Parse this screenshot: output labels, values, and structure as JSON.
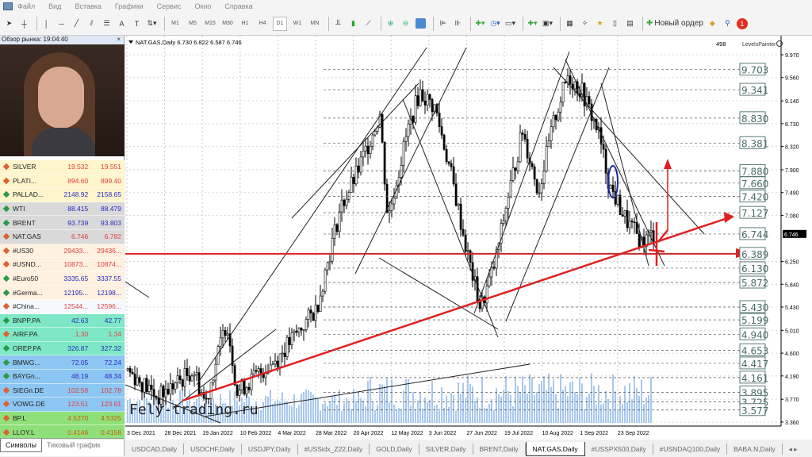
{
  "menu": [
    "Файл",
    "Вид",
    "Вставка",
    "Графики",
    "Сервис",
    "Окно",
    "Справка"
  ],
  "toolbar": {
    "timeframes": [
      "M1",
      "M5",
      "M15",
      "M30",
      "H1",
      "H4",
      "D1",
      "W1",
      "MN"
    ],
    "active_timeframe": "D1",
    "new_order": "Новый ордер",
    "notifications": "1"
  },
  "market_watch": {
    "title": "Обзор рынка: 19:04:40",
    "close": "×",
    "rows": [
      {
        "symbol": "SILVER",
        "bid": "19.532",
        "ask": "19.551",
        "dir": "down",
        "bg": "#fff5cc"
      },
      {
        "symbol": "PLATI...",
        "bid": "894.60",
        "ask": "899.40",
        "dir": "down",
        "bg": "#fff5cc"
      },
      {
        "symbol": "PALLAD...",
        "bid": "2148.92",
        "ask": "2158.65",
        "dir": "up",
        "bg": "#fff5cc"
      },
      {
        "symbol": "WTI",
        "bid": "88.415",
        "ask": "88.479",
        "dir": "up",
        "bg": "#d9d9d9"
      },
      {
        "symbol": "BRENT",
        "bid": "93.739",
        "ask": "93.803",
        "dir": "up",
        "bg": "#d9d9d9"
      },
      {
        "symbol": "NAT.GAS",
        "bid": "6.746",
        "ask": "6.782",
        "dir": "down",
        "bg": "#d9d9d9"
      },
      {
        "symbol": "#US30",
        "bid": "29433...",
        "ask": "29436...",
        "dir": "down",
        "bg": "#fff0e0"
      },
      {
        "symbol": "#USND...",
        "bid": "10873...",
        "ask": "10874...",
        "dir": "down",
        "bg": "#fff0e0"
      },
      {
        "symbol": "#Euro50",
        "bid": "3335.65",
        "ask": "3337.55",
        "dir": "up",
        "bg": "#fff0e0"
      },
      {
        "symbol": "#Germa...",
        "bid": "12195...",
        "ask": "12198...",
        "dir": "up",
        "bg": "#fff0e0"
      },
      {
        "symbol": "#China...",
        "bid": "12544...",
        "ask": "12596...",
        "dir": "down",
        "bg": "#f6f8ff"
      },
      {
        "symbol": "BNPP.PA",
        "bid": "42.63",
        "ask": "42.77",
        "dir": "up",
        "bg": "#7ee8c6"
      },
      {
        "symbol": "AIRF.PA",
        "bid": "1.30",
        "ask": "1.34",
        "dir": "down",
        "bg": "#7ee8c6"
      },
      {
        "symbol": "OREP.PA",
        "bid": "326.87",
        "ask": "327.32",
        "dir": "up",
        "bg": "#7ee8c6"
      },
      {
        "symbol": "BMWG...",
        "bid": "72.05",
        "ask": "72.24",
        "dir": "up",
        "bg": "#8cc6f2"
      },
      {
        "symbol": "BAYGn...",
        "bid": "48.19",
        "ask": "48.34",
        "dir": "up",
        "bg": "#8cc6f2"
      },
      {
        "symbol": "SIEGn.DE",
        "bid": "102.58",
        "ask": "102.78",
        "dir": "down",
        "bg": "#8cc6f2"
      },
      {
        "symbol": "VOWG.DE",
        "bid": "123.51",
        "ask": "123.91",
        "dir": "down",
        "bg": "#8cc6f2"
      },
      {
        "symbol": "BP.L",
        "bid": "4.5270",
        "ask": "4.5325",
        "dir": "down",
        "bg": "#8fe07a"
      },
      {
        "symbol": "LLOY.L",
        "bid": "0.4146",
        "ask": "0.4158",
        "dir": "down",
        "bg": "#8fe07a"
      }
    ],
    "tabs": [
      "Символы",
      "Тиковый график"
    ],
    "active_tab": "Символы"
  },
  "chart": {
    "header": "NAT.GAS,Daily  6.730 6.822 6.587 6.746",
    "counter": "498",
    "indicator": "LevelsPainter",
    "watermark": "Fely-trading.ru",
    "current_price": "6.746",
    "price_ticks": [
      "9.970",
      "9.560",
      "9.140",
      "8.730",
      "8.320",
      "7.900",
      "7.490",
      "7.080",
      "6.250",
      "5.840",
      "5.430",
      "5.010",
      "4.600",
      "4.190",
      "3.770",
      "3.360"
    ],
    "levels": [
      "9.703",
      "9.341",
      "8.830",
      "8.381",
      "7.880",
      "7.660",
      "7.420",
      "7.127",
      "6.744",
      "6.389",
      "6.130",
      "5.872",
      "5.430",
      "5.199",
      "4.940",
      "4.653",
      "4.417",
      "4.161",
      "3.895",
      "3.725",
      "3.577"
    ],
    "date_ticks": [
      "3 Dec 2021",
      "28 Dec 2021",
      "19 Jan 2022",
      "10 Feb 2022",
      "4 Mar 2022",
      "28 Mar 2022",
      "20 Apr 2022",
      "12 May 2022",
      "3 Jun 2022",
      "27 Jun 2022",
      "19 Jul 2022",
      "10 Aug 2022",
      "1 Sep 2022",
      "23 Sep 2022"
    ],
    "colors": {
      "trendline": "#e02020",
      "level_box": "#5a7a7a",
      "volume": "#a8c8ee"
    }
  },
  "bottom_tabs": [
    "USDCAD,Daily",
    "USDCHF,Daily",
    "USDJPY,Daily",
    "#USSidx_Z22,Daily",
    "GOLD,Daily",
    "SILVER,Daily",
    "BRENT,Daily",
    "NAT.GAS,Daily",
    "#USSPX500,Daily",
    "#USNDAQ100,Daily",
    "BABA.N,Daily"
  ],
  "active_bottom_tab": "NAT.GAS,Daily"
}
